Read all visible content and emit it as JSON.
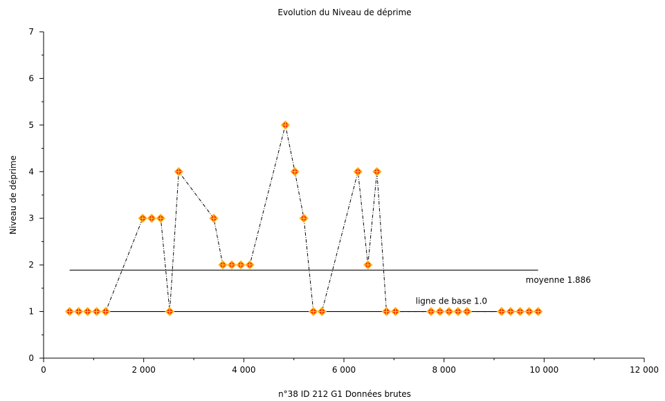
{
  "chart_data": {
    "type": "scatter",
    "title": "Evolution du Niveau de déprime",
    "xlabel": "n°38   ID 212   G1 Données brutes",
    "ylabel": "Niveau de déprime",
    "xlim": [
      0,
      12000
    ],
    "ylim": [
      0,
      7
    ],
    "x_ticks": [
      0,
      2000,
      4000,
      6000,
      8000,
      10000,
      12000
    ],
    "x_tick_labels": [
      "0",
      "2 000",
      "4 000",
      "6 000",
      "8 000",
      "10 000",
      "12 000"
    ],
    "y_ticks": [
      0,
      1,
      2,
      3,
      4,
      5,
      6,
      7
    ],
    "y_tick_labels": [
      "0",
      "1",
      "2",
      "3",
      "4",
      "5",
      "6",
      "7"
    ],
    "grid": false,
    "series": [
      {
        "marker": "diamond",
        "marker_fill": "#ff2a00",
        "marker_edge": "#ffcc33",
        "line_style": "dashdot",
        "line_color": "#000000",
        "x": [
          520,
          700,
          880,
          1060,
          1240,
          1980,
          2160,
          2340,
          2520,
          2700,
          3400,
          3580,
          3760,
          3940,
          4120,
          4830,
          5020,
          5200,
          5390,
          5560,
          6280,
          6480,
          6660,
          6850,
          7030,
          7740,
          7920,
          8100,
          8280,
          8460,
          9150,
          9330,
          9520,
          9700,
          9880
        ],
        "y": [
          1,
          1,
          1,
          1,
          1,
          3,
          3,
          3,
          1,
          4,
          3,
          2,
          2,
          2,
          2,
          5,
          4,
          3,
          1,
          1,
          4,
          2,
          4,
          1,
          1,
          1,
          1,
          1,
          1,
          1,
          1,
          1,
          1,
          1,
          1
        ]
      }
    ],
    "reference_lines": [
      {
        "label": "moyenne 1.886",
        "y": 1.886,
        "x_start": 520,
        "x_end": 9880,
        "color": "#000000"
      },
      {
        "label": "ligne de base 1.0",
        "y": 1.0,
        "x_start": 520,
        "x_end": 9880,
        "color": "#000000"
      }
    ]
  }
}
